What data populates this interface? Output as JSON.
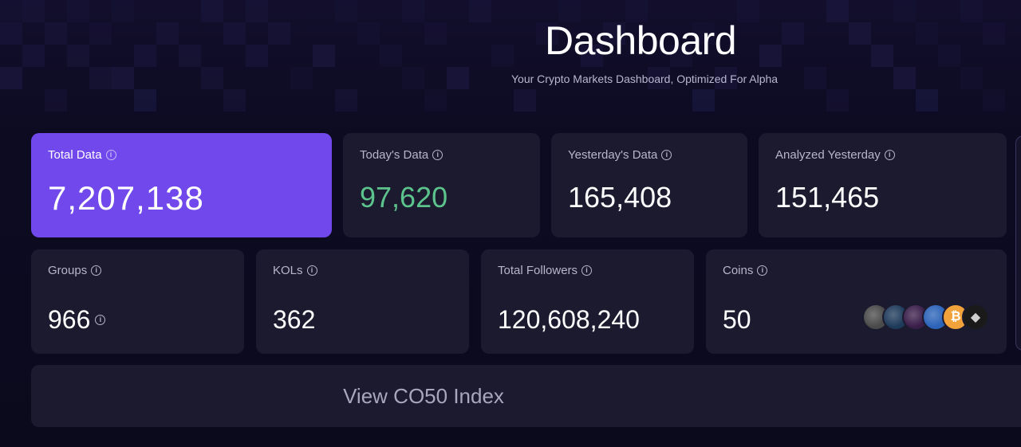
{
  "header": {
    "title": "Dashboard",
    "subtitle": "Your Crypto Markets Dashboard, Optimized For Alpha"
  },
  "stats_row1": [
    {
      "label": "Total Data",
      "value": "7,207,138"
    },
    {
      "label": "Today's Data",
      "value": "97,620"
    },
    {
      "label": "Yesterday's Data",
      "value": "165,408"
    },
    {
      "label": "Analyzed Yesterday",
      "value": "151,465"
    }
  ],
  "stats_row2": [
    {
      "label": "Groups",
      "value": "966"
    },
    {
      "label": "KOLs",
      "value": "362"
    },
    {
      "label": "Total Followers",
      "value": "120,608,240"
    },
    {
      "label": "Coins",
      "value": "50"
    }
  ],
  "coins": [
    {
      "icon": "coin-avatar-1-icon",
      "color": "#4a4a4a"
    },
    {
      "icon": "coin-avatar-2-icon",
      "color": "#1e3a5a"
    },
    {
      "icon": "coin-avatar-3-icon",
      "color": "#3a1e4a"
    },
    {
      "icon": "coin-avatar-4-icon",
      "color": "#2b63b8"
    },
    {
      "icon": "bitcoin-icon",
      "color": "#f2a23a",
      "glyph": "₿"
    },
    {
      "icon": "ethereum-icon",
      "color": "#1a1a1a",
      "glyph": "◆"
    }
  ],
  "cta": {
    "label": "View CO50 Index"
  },
  "colors": {
    "accent": "#7048ec",
    "positive": "#5dc38d",
    "card": "#1b1a2e",
    "background": "#0c0a1e"
  }
}
